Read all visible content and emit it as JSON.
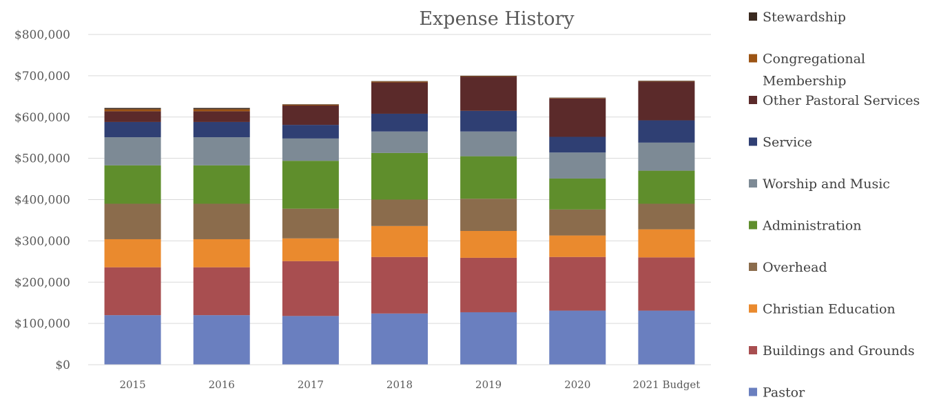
{
  "chart_data": {
    "type": "bar",
    "stacked": true,
    "title": "Expense History",
    "xlabel": "",
    "ylabel": "",
    "ylim": [
      0,
      800000
    ],
    "y_ticks": [
      "$0",
      "$100,000",
      "$200,000",
      "$300,000",
      "$400,000",
      "$500,000",
      "$600,000",
      "$700,000",
      "$800,000"
    ],
    "grid": true,
    "legend_position": "right",
    "categories": [
      "2015",
      "2016",
      "2017",
      "2018",
      "2019",
      "2020",
      "2021 Budget"
    ],
    "series": [
      {
        "name": "Pastor",
        "color": "#6a7fbf",
        "values": [
          120000,
          120000,
          118000,
          124000,
          127000,
          131000,
          131000
        ]
      },
      {
        "name": "Buildings and Grounds",
        "color": "#a84e50",
        "values": [
          116000,
          116000,
          133000,
          137000,
          132000,
          130000,
          129000
        ]
      },
      {
        "name": "Christian Education",
        "color": "#ea8a2e",
        "values": [
          68000,
          68000,
          55000,
          75000,
          65000,
          52000,
          68000
        ]
      },
      {
        "name": "Overhead",
        "color": "#8b6c4c",
        "values": [
          86000,
          86000,
          72000,
          64000,
          78000,
          63000,
          62000
        ]
      },
      {
        "name": "Administration",
        "color": "#5f8e2c",
        "values": [
          93000,
          93000,
          116000,
          113000,
          103000,
          75000,
          80000
        ]
      },
      {
        "name": "Worship and Music",
        "color": "#7d8a95",
        "values": [
          68000,
          68000,
          54000,
          52000,
          60000,
          63000,
          68000
        ]
      },
      {
        "name": "Service",
        "color": "#2f3f73",
        "values": [
          37000,
          37000,
          33000,
          43000,
          50000,
          38000,
          54000
        ]
      },
      {
        "name": "Other Pastoral Services",
        "color": "#5b2a2a",
        "values": [
          26000,
          26000,
          47000,
          76000,
          83000,
          93000,
          94000
        ]
      },
      {
        "name": "Congregational Membership",
        "color": "#9c5414",
        "values": [
          5000,
          5000,
          2000,
          2000,
          1000,
          1000,
          1000
        ]
      },
      {
        "name": "Stewardship",
        "color": "#3a2a20",
        "values": [
          3000,
          3000,
          1000,
          1000,
          1000,
          1000,
          1000
        ]
      }
    ]
  }
}
